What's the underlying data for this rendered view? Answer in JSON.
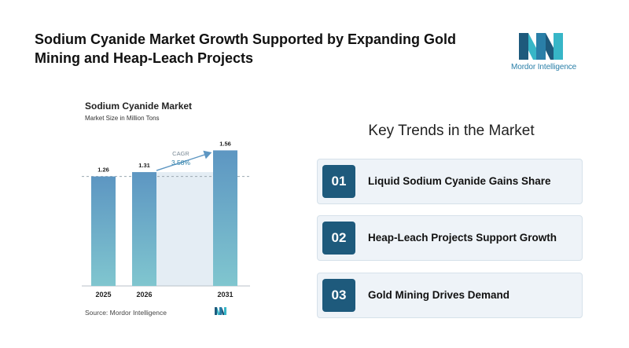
{
  "headline": "Sodium Cyanide Market Growth Supported by Expanding Gold Mining and Heap-Leach Projects",
  "brand": {
    "name": "Mordor Intelligence",
    "colors": {
      "dark": "#1e5a7c",
      "teal": "#37b6c7",
      "blue": "#2a7fa8"
    }
  },
  "chart_data": {
    "type": "bar",
    "title": "Sodium Cyanide Market",
    "subtitle": "Market Size in Million Tons",
    "categories": [
      "2025",
      "2026",
      "2031"
    ],
    "values": [
      1.26,
      1.31,
      1.56
    ],
    "value_labels": [
      "1.26",
      "1.31",
      "1.56"
    ],
    "ylim": [
      0,
      1.6
    ],
    "cagr_label": "CAGR",
    "cagr_value": "3.58%",
    "reference_line": 1.26,
    "grid": false,
    "bar_gradient": [
      "#5d96c2",
      "#80c6cf"
    ]
  },
  "source": "Source: Mordor Intelligence",
  "trends": {
    "title": "Key Trends in the Market",
    "items": [
      {
        "num": "01",
        "label": "Liquid Sodium Cyanide Gains Share"
      },
      {
        "num": "02",
        "label": "Heap-Leach Projects Support Growth"
      },
      {
        "num": "03",
        "label": "Gold Mining Drives Demand"
      }
    ]
  }
}
